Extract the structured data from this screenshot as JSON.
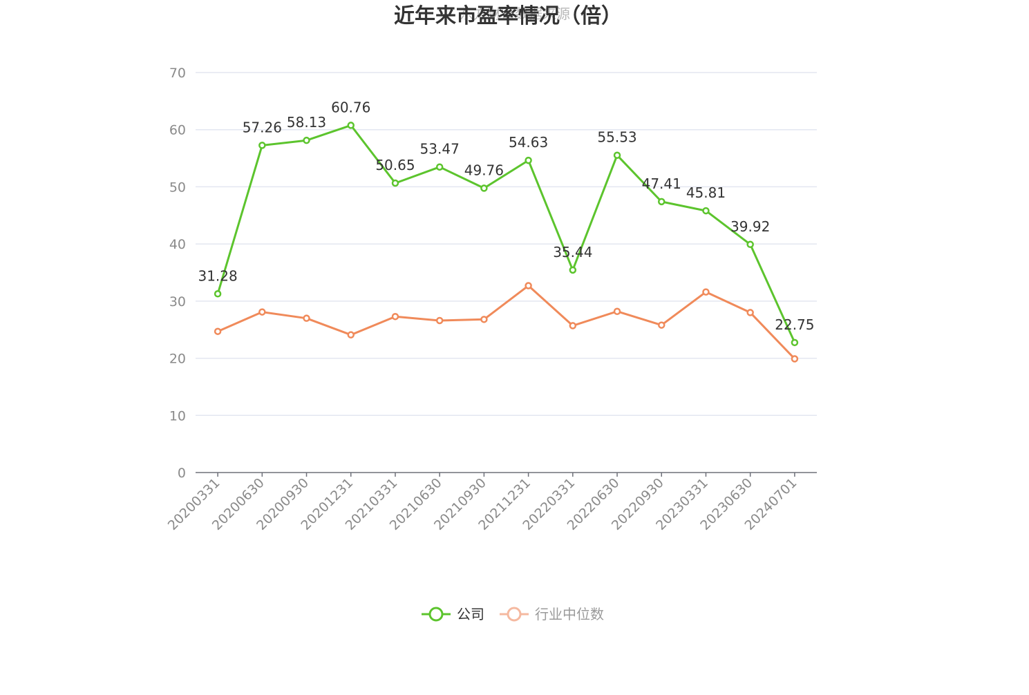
{
  "chart_data": {
    "type": "line",
    "title": "近年来市盈率情况（倍）",
    "watermark": "东方财富数据来源",
    "categories": [
      "20200331",
      "20200630",
      "20200930",
      "20201231",
      "20210331",
      "20210630",
      "20210930",
      "20211231",
      "20220331",
      "20220630",
      "20220930",
      "20230331",
      "20230630",
      "20240701"
    ],
    "ylim": [
      0,
      70
    ],
    "yticks": [
      0,
      10,
      20,
      30,
      40,
      50,
      60,
      70
    ],
    "grid": true,
    "legend_position": "bottom-center",
    "series": [
      {
        "name": "公司",
        "color": "#5cc42d",
        "show_labels": true,
        "values": [
          31.28,
          57.26,
          58.13,
          60.76,
          50.65,
          53.47,
          49.76,
          54.63,
          35.44,
          55.53,
          47.41,
          45.81,
          39.92,
          22.75
        ],
        "labels": [
          "31.28",
          "57.26",
          "58.13",
          "60.76",
          "50.65",
          "53.47",
          "49.76",
          "54.63",
          "35.44",
          "55.53",
          "47.41",
          "45.81",
          "39.92",
          "22.75"
        ]
      },
      {
        "name": "行业中位数",
        "color": "#f08a5a",
        "legend_color": "#f5b9a0",
        "legend_text_color": "#9a9a9a",
        "show_labels": false,
        "values": [
          24.7,
          28.1,
          27.0,
          24.1,
          27.3,
          26.6,
          26.8,
          32.7,
          25.7,
          28.2,
          25.8,
          31.6,
          28.0,
          19.9
        ]
      }
    ]
  }
}
